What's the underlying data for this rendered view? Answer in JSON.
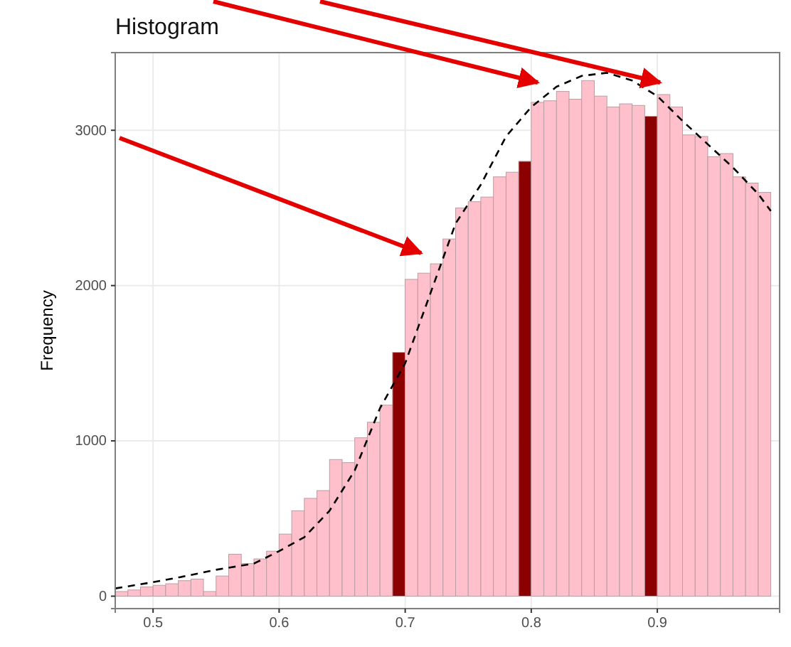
{
  "chart_data": {
    "type": "histogram",
    "title": "Histogram",
    "ylabel": "Frequency",
    "bins": [
      0.47,
      0.48,
      0.49,
      0.5,
      0.51,
      0.52,
      0.53,
      0.54,
      0.55,
      0.56,
      0.57,
      0.58,
      0.59,
      0.6,
      0.61,
      0.62,
      0.63,
      0.64,
      0.65,
      0.66,
      0.67,
      0.68,
      0.69,
      0.7,
      0.71,
      0.72,
      0.73,
      0.74,
      0.75,
      0.76,
      0.77,
      0.78,
      0.79,
      0.8,
      0.81,
      0.82,
      0.83,
      0.84,
      0.85,
      0.86,
      0.87,
      0.88,
      0.89,
      0.9,
      0.91,
      0.92,
      0.93,
      0.94,
      0.95,
      0.96,
      0.97,
      0.98,
      0.99
    ],
    "values": [
      30,
      40,
      60,
      70,
      80,
      100,
      110,
      30,
      130,
      270,
      210,
      240,
      290,
      400,
      550,
      630,
      680,
      880,
      860,
      1020,
      1120,
      1230,
      1570,
      2040,
      2080,
      2140,
      2300,
      2500,
      2540,
      2570,
      2700,
      2730,
      2800,
      3180,
      3190,
      3250,
      3200,
      3320,
      3220,
      3150,
      3170,
      3160,
      3090,
      3230,
      3150,
      2970,
      2960,
      2830,
      2850,
      2700,
      2660,
      2600
    ],
    "colors": [
      "#ffc0cb",
      "#ffc0cb",
      "#ffc0cb",
      "#ffc0cb",
      "#ffc0cb",
      "#ffc0cb",
      "#ffc0cb",
      "#ffc0cb",
      "#ffc0cb",
      "#ffc0cb",
      "#ffc0cb",
      "#ffc0cb",
      "#ffc0cb",
      "#ffc0cb",
      "#ffc0cb",
      "#ffc0cb",
      "#ffc0cb",
      "#ffc0cb",
      "#ffc0cb",
      "#ffc0cb",
      "#ffc0cb",
      "#ffc0cb",
      "#8b0000",
      "#ffc0cb",
      "#ffc0cb",
      "#ffc0cb",
      "#ffc0cb",
      "#ffc0cb",
      "#ffc0cb",
      "#ffc0cb",
      "#ffc0cb",
      "#ffc0cb",
      "#8b0000",
      "#ffc0cb",
      "#ffc0cb",
      "#ffc0cb",
      "#ffc0cb",
      "#ffc0cb",
      "#ffc0cb",
      "#ffc0cb",
      "#ffc0cb",
      "#ffc0cb",
      "#8b0000",
      "#ffc0cb",
      "#ffc0cb",
      "#ffc0cb",
      "#ffc0cb",
      "#ffc0cb",
      "#ffc0cb",
      "#ffc0cb",
      "#ffc0cb",
      "#ffc0cb"
    ],
    "series": [
      {
        "type": "line",
        "color": "#000000",
        "line_style": "dashed",
        "x": [
          0.47,
          0.5,
          0.52,
          0.55,
          0.58,
          0.6,
          0.62,
          0.64,
          0.66,
          0.68,
          0.7,
          0.72,
          0.74,
          0.76,
          0.78,
          0.8,
          0.82,
          0.84,
          0.86,
          0.88,
          0.9,
          0.92,
          0.94,
          0.96,
          0.98,
          0.99
        ],
        "values": [
          50,
          90,
          120,
          170,
          210,
          290,
          380,
          550,
          810,
          1210,
          1500,
          1950,
          2400,
          2650,
          2960,
          3150,
          3280,
          3350,
          3370,
          3320,
          3220,
          3060,
          2910,
          2760,
          2590,
          2480
        ]
      }
    ],
    "xlim": [
      0.47,
      0.997
    ],
    "xticks": [
      0.5,
      0.6,
      0.7,
      0.8,
      0.9
    ],
    "ylim": [
      -80,
      3500
    ],
    "yticks": [
      0,
      1000,
      2000,
      3000
    ],
    "grid": true
  }
}
